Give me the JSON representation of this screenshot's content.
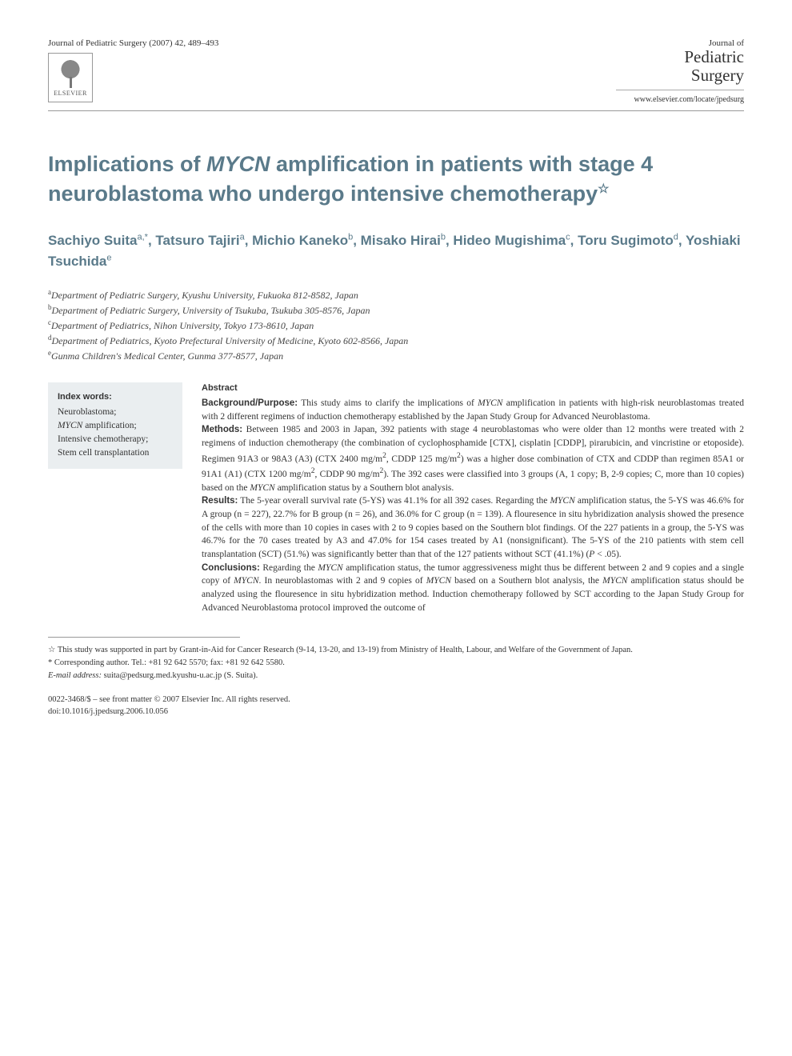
{
  "header": {
    "journal_ref": "Journal of Pediatric Surgery (2007) 42, 489–493",
    "elsevier_label": "ELSEVIER",
    "journal_name_top": "Journal of",
    "journal_name_mid": "Pediatric",
    "journal_name_bot": "Surgery",
    "journal_url": "www.elsevier.com/locate/jpedsurg"
  },
  "title_parts": {
    "pre": "Implications of ",
    "italic": "MYCN",
    "post": " amplification in patients with stage 4 neuroblastoma who undergo intensive chemotherapy",
    "star": "☆"
  },
  "authors_html": "Sachiyo Suita<sup>a,*</sup>, Tatsuro Tajiri<sup>a</sup>, Michio Kaneko<sup>b</sup>, Misako Hirai<sup>b</sup>, Hideo Mugishima<sup>c</sup>, Toru Sugimoto<sup>d</sup>, Yoshiaki Tsuchida<sup>e</sup>",
  "affiliations": [
    {
      "sup": "a",
      "text": "Department of Pediatric Surgery, Kyushu University, Fukuoka 812-8582, Japan"
    },
    {
      "sup": "b",
      "text": "Department of Pediatric Surgery, University of Tsukuba, Tsukuba 305-8576, Japan"
    },
    {
      "sup": "c",
      "text": "Department of Pediatrics, Nihon University, Tokyo 173-8610, Japan"
    },
    {
      "sup": "d",
      "text": "Department of Pediatrics, Kyoto Prefectural University of Medicine, Kyoto 602-8566, Japan"
    },
    {
      "sup": "e",
      "text": "Gunma Children's Medical Center, Gunma 377-8577, Japan"
    }
  ],
  "keywords": {
    "title": "Index words:",
    "items": [
      "Neuroblastoma;",
      "<span class=\"italic\">MYCN</span> amplification;",
      "Intensive chemotherapy;",
      "Stem cell transplantation"
    ]
  },
  "abstract": {
    "title": "Abstract",
    "sections": [
      {
        "label": "Background/Purpose:",
        "text": " This study aims to clarify the implications of <span class=\"italic\">MYCN</span> amplification in patients with high-risk neuroblastomas treated with 2 different regimens of induction chemotherapy established by the Japan Study Group for Advanced Neuroblastoma."
      },
      {
        "label": "Methods:",
        "text": " Between 1985 and 2003 in Japan, 392 patients with stage 4 neuroblastomas who were older than 12 months were treated with 2 regimens of induction chemotherapy (the combination of cyclophosphamide [CTX], cisplatin [CDDP], pirarubicin, and vincristine or etoposide). Regimen 91A3 or 98A3 (A3) (CTX 2400 mg/m<sup>2</sup>, CDDP 125 mg/m<sup>2</sup>) was a higher dose combination of CTX and CDDP than regimen 85A1 or 91A1 (A1) (CTX 1200 mg/m<sup>2</sup>, CDDP 90 mg/m<sup>2</sup>). The 392 cases were classified into 3 groups (A, 1 copy; B, 2-9 copies; C, more than 10 copies) based on the <span class=\"italic\">MYCN</span> amplification status by a Southern blot analysis."
      },
      {
        "label": "Results:",
        "text": " The 5-year overall survival rate (5-YS) was 41.1% for all 392 cases. Regarding the <span class=\"italic\">MYCN</span> amplification status, the 5-YS was 46.6% for A group (n = 227), 22.7% for B group (n = 26), and 36.0% for C group (n = 139). A flouresence in situ hybridization analysis showed the presence of the cells with more than 10 copies in cases with 2 to 9 copies based on the Southern blot findings. Of the 227 patients in a group, the 5-YS was 46.7% for the 70 cases treated by A3 and 47.0% for 154 cases treated by A1 (nonsignificant). The 5-YS of the 210 patients with stem cell transplantation (SCT) (51.%) was significantly better than that of the 127 patients without SCT (41.1%) (<span class=\"italic\">P</span> < .05)."
      },
      {
        "label": "Conclusions:",
        "text": " Regarding the <span class=\"italic\">MYCN</span> amplification status, the tumor aggressiveness might thus be different between 2 and 9 copies and a single copy of <span class=\"italic\">MYCN</span>. In neuroblastomas with 2 and 9 copies of <span class=\"italic\">MYCN</span> based on a Southern blot analysis, the <span class=\"italic\">MYCN</span> amplification status should be analyzed using the flouresence in situ hybridization method. Induction chemotherapy followed by SCT according to the Japan Study Group for Advanced Neuroblastoma protocol improved the outcome of"
      }
    ]
  },
  "footnotes": {
    "funding": "☆ This study was supported in part by Grant-in-Aid for Cancer Research (9-14, 13-20, and 13-19) from Ministry of Health, Labour, and Welfare of the Government of Japan.",
    "corresponding": "* Corresponding author. Tel.: +81 92 642 5570; fax: +81 92 642 5580.",
    "email_label": "E-mail address:",
    "email": " suita@pedsurg.med.kyushu-u.ac.jp (S. Suita)."
  },
  "copyright": {
    "line1": "0022-3468/$ – see front matter © 2007 Elsevier Inc. All rights reserved.",
    "line2": "doi:10.1016/j.jpedsurg.2006.10.056"
  },
  "colors": {
    "heading": "#5a7a8a",
    "text": "#333333",
    "keyword_bg": "#eaeef0",
    "divider": "#999999"
  }
}
